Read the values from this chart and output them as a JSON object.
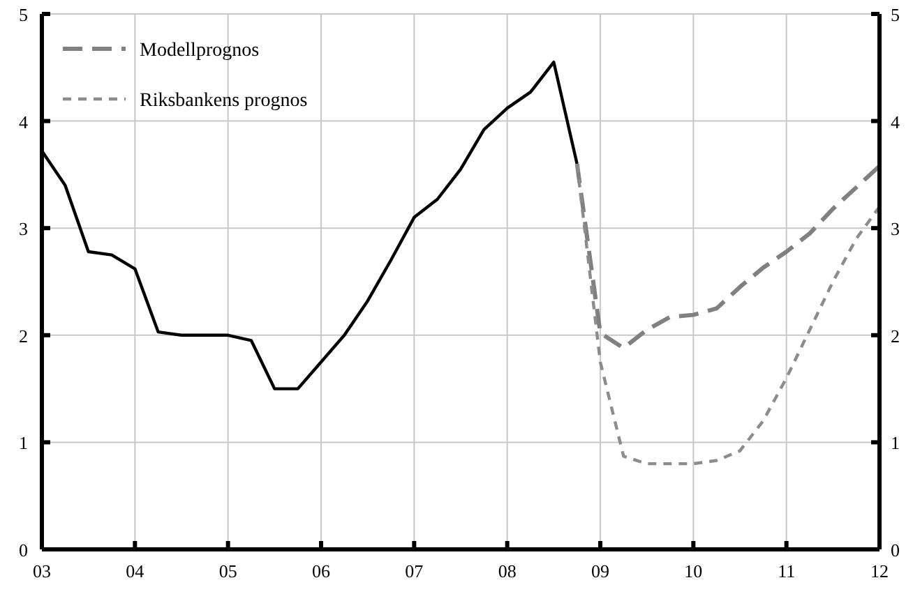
{
  "chart_data": {
    "type": "line",
    "x": [
      2003,
      2003.25,
      2003.5,
      2003.75,
      2004,
      2004.25,
      2004.5,
      2004.75,
      2005,
      2005.25,
      2005.5,
      2005.75,
      2006,
      2006.25,
      2006.5,
      2006.75,
      2007,
      2007.25,
      2007.5,
      2007.75,
      2008,
      2008.25,
      2008.5,
      2008.75
    ],
    "series": [
      {
        "color": "#000000",
        "line_style": "solid",
        "values": [
          3.72,
          3.4,
          2.78,
          2.75,
          2.62,
          2.03,
          2.0,
          2.0,
          2.0,
          1.95,
          1.5,
          1.5,
          1.75,
          2.0,
          2.32,
          2.7,
          3.1,
          3.27,
          3.55,
          3.92,
          4.12,
          4.27,
          4.55,
          3.6
        ]
      },
      {
        "name": "Modellprognos",
        "color": "#808080",
        "line_style": "dashed",
        "x": [
          2008.75,
          2009,
          2009.25,
          2009.5,
          2009.75,
          2010,
          2010.25,
          2010.5,
          2010.75,
          2011,
          2011.25,
          2011.5,
          2011.75,
          2012
        ],
        "values": [
          3.6,
          2.02,
          1.88,
          2.05,
          2.17,
          2.19,
          2.25,
          2.45,
          2.63,
          2.78,
          2.95,
          3.18,
          3.38,
          3.58
        ]
      },
      {
        "name": "Riksbankens prognos",
        "color": "#8c8c8c",
        "line_style": "dotted",
        "x": [
          2008.75,
          2009,
          2009.25,
          2009.5,
          2009.75,
          2010,
          2010.25,
          2010.5,
          2010.75,
          2011,
          2011.25,
          2011.5,
          2011.75,
          2012
        ],
        "values": [
          3.6,
          1.75,
          0.87,
          0.8,
          0.8,
          0.8,
          0.83,
          0.92,
          1.2,
          1.6,
          2.05,
          2.5,
          2.9,
          3.2
        ]
      }
    ],
    "xlim": [
      2003,
      2012
    ],
    "xticks": [
      {
        "value": 2003,
        "label": "03"
      },
      {
        "value": 2004,
        "label": "04"
      },
      {
        "value": 2005,
        "label": "05"
      },
      {
        "value": 2006,
        "label": "06"
      },
      {
        "value": 2007,
        "label": "07"
      },
      {
        "value": 2008,
        "label": "08"
      },
      {
        "value": 2009,
        "label": "09"
      },
      {
        "value": 2010,
        "label": "10"
      },
      {
        "value": 2011,
        "label": "11"
      },
      {
        "value": 2012,
        "label": "12"
      }
    ],
    "ylim": [
      0,
      5
    ],
    "yticks": [
      0,
      1,
      2,
      3,
      4,
      5
    ],
    "y2lim": [
      0,
      5
    ],
    "y2ticks": [
      0,
      1,
      2,
      3,
      4,
      5
    ],
    "grid": true,
    "legend": "top left",
    "marker": "none"
  }
}
